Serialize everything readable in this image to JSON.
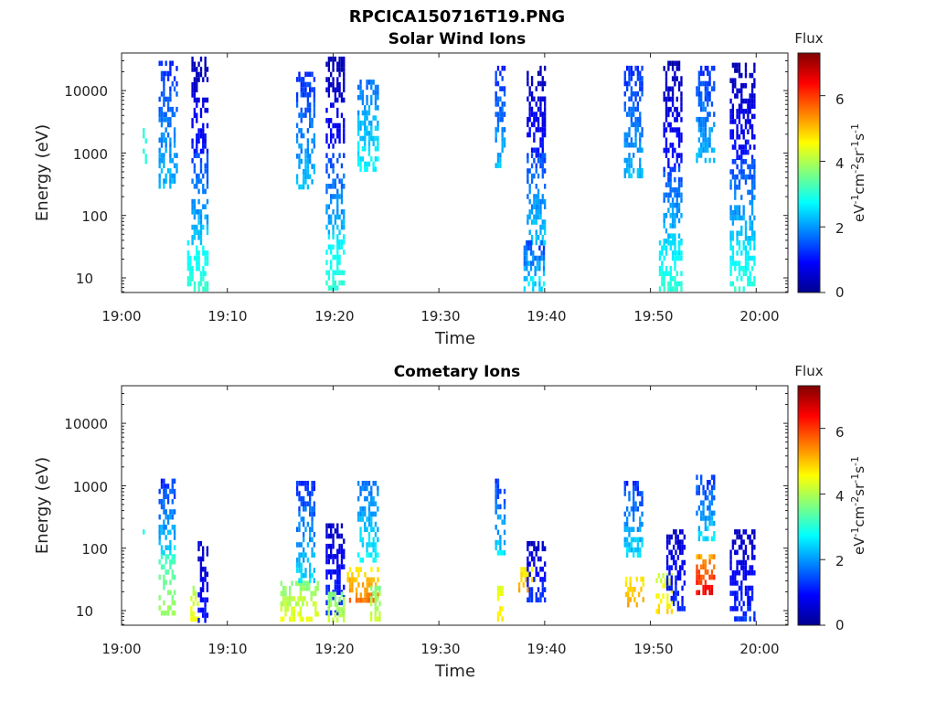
{
  "figure_title": "RPCICA150716T19.PNG",
  "chart_data": [
    {
      "type": "heatmap",
      "title": "Solar Wind Ions",
      "xlabel": "Time",
      "ylabel": "Energy (eV)",
      "colorbar_title": "Flux",
      "colorbar_label": "eV-1cm-2sr-1s-1",
      "colorbar_range": [
        0,
        7.3
      ],
      "colorbar_ticks": [
        "0",
        "2",
        "4",
        "6"
      ],
      "colormap": "jet",
      "x_tick_labels": [
        "19:00",
        "19:10",
        "19:20",
        "19:30",
        "19:40",
        "19:50",
        "20:00"
      ],
      "x_range_minutes": [
        0,
        63
      ],
      "y_scale": "log",
      "y_tick_labels": [
        "10",
        "100",
        "1000",
        "10000"
      ],
      "y_range": [
        6,
        35000
      ],
      "bursts": [
        {
          "start": 2.0,
          "end": 2.3,
          "emin": 600,
          "emax": 2500,
          "flux": [
            3,
            3
          ]
        },
        {
          "start": 3.5,
          "end": 5.2,
          "emin": 300,
          "emax": 30000,
          "flux": [
            1,
            2.5
          ]
        },
        {
          "start": 6.6,
          "end": 8.2,
          "emin": 1000,
          "emax": 35000,
          "flux": [
            0.2,
            1.2
          ]
        },
        {
          "start": 6.6,
          "end": 8.2,
          "emin": 40,
          "emax": 1000,
          "flux": [
            1.2,
            2.6
          ]
        },
        {
          "start": 6.2,
          "end": 8.2,
          "emin": 6,
          "emax": 40,
          "flux": [
            2.6,
            3.2
          ]
        },
        {
          "start": 16.5,
          "end": 18.2,
          "emin": 300,
          "emax": 20000,
          "flux": [
            1,
            2.5
          ]
        },
        {
          "start": 19.3,
          "end": 21.0,
          "emin": 1000,
          "emax": 35000,
          "flux": [
            0.2,
            1.2
          ]
        },
        {
          "start": 19.3,
          "end": 21.0,
          "emin": 50,
          "emax": 1000,
          "flux": [
            1.2,
            2.5
          ]
        },
        {
          "start": 19.3,
          "end": 21.0,
          "emin": 6,
          "emax": 50,
          "flux": [
            2.5,
            3.2
          ]
        },
        {
          "start": 22.3,
          "end": 24.3,
          "emin": 600,
          "emax": 15000,
          "flux": [
            1.5,
            3
          ]
        },
        {
          "start": 35.3,
          "end": 36.3,
          "emin": 600,
          "emax": 25000,
          "flux": [
            1,
            2.5
          ]
        },
        {
          "start": 38.3,
          "end": 40.0,
          "emin": 1000,
          "emax": 25000,
          "flux": [
            0.2,
            1.2
          ]
        },
        {
          "start": 38.3,
          "end": 40.0,
          "emin": 40,
          "emax": 1000,
          "flux": [
            1.2,
            2.6
          ]
        },
        {
          "start": 38.0,
          "end": 40.0,
          "emin": 6,
          "emax": 40,
          "flux": [
            1,
            3.2
          ]
        },
        {
          "start": 47.5,
          "end": 49.2,
          "emin": 400,
          "emax": 25000,
          "flux": [
            1,
            2.5
          ]
        },
        {
          "start": 51.2,
          "end": 53.0,
          "emin": 600,
          "emax": 30000,
          "flux": [
            0.2,
            1.2
          ]
        },
        {
          "start": 51.2,
          "end": 53.0,
          "emin": 40,
          "emax": 600,
          "flux": [
            1.2,
            2.6
          ]
        },
        {
          "start": 50.8,
          "end": 53.0,
          "emin": 6,
          "emax": 40,
          "flux": [
            2.4,
            3.2
          ]
        },
        {
          "start": 54.3,
          "end": 56.0,
          "emin": 700,
          "emax": 25000,
          "flux": [
            1,
            2.5
          ]
        },
        {
          "start": 57.5,
          "end": 59.8,
          "emin": 800,
          "emax": 28000,
          "flux": [
            0.2,
            1.2
          ]
        },
        {
          "start": 57.5,
          "end": 59.8,
          "emin": 40,
          "emax": 800,
          "flux": [
            1.2,
            2.6
          ]
        },
        {
          "start": 57.5,
          "end": 59.8,
          "emin": 6,
          "emax": 40,
          "flux": [
            2.4,
            3.2
          ]
        }
      ]
    },
    {
      "type": "heatmap",
      "title": "Cometary Ions",
      "xlabel": "Time",
      "ylabel": "Energy (eV)",
      "colorbar_title": "Flux",
      "colorbar_label": "eV-1cm-2sr-1s-1",
      "colorbar_range": [
        0,
        7.3
      ],
      "colorbar_ticks": [
        "0",
        "2",
        "4",
        "6"
      ],
      "colormap": "jet",
      "x_tick_labels": [
        "19:00",
        "19:10",
        "19:20",
        "19:30",
        "19:40",
        "19:50",
        "20:00"
      ],
      "x_range_minutes": [
        0,
        63
      ],
      "y_scale": "log",
      "y_tick_labels": [
        "10",
        "100",
        "1000",
        "10000"
      ],
      "y_range": [
        6,
        35000
      ],
      "bursts": [
        {
          "start": 2.0,
          "end": 2.5,
          "emin": 150,
          "emax": 200,
          "flux": [
            2.8,
            3.2
          ]
        },
        {
          "start": 3.5,
          "end": 5.0,
          "emin": 80,
          "emax": 1300,
          "flux": [
            1,
            2.8
          ]
        },
        {
          "start": 3.5,
          "end": 5.0,
          "emin": 10,
          "emax": 80,
          "flux": [
            3,
            4
          ]
        },
        {
          "start": 6.5,
          "end": 7.3,
          "emin": 6,
          "emax": 25,
          "flux": [
            3.8,
            4.8
          ]
        },
        {
          "start": 7.2,
          "end": 8.2,
          "emin": 6,
          "emax": 130,
          "flux": [
            0.3,
            1.3
          ]
        },
        {
          "start": 15.0,
          "end": 18.5,
          "emin": 6,
          "emax": 30,
          "flux": [
            3.5,
            4.8
          ]
        },
        {
          "start": 16.5,
          "end": 18.2,
          "emin": 30,
          "emax": 1200,
          "flux": [
            1,
            2.8
          ]
        },
        {
          "start": 19.3,
          "end": 21.0,
          "emin": 10,
          "emax": 250,
          "flux": [
            0.3,
            1.5
          ]
        },
        {
          "start": 19.5,
          "end": 21.0,
          "emin": 6,
          "emax": 20,
          "flux": [
            3.5,
            4.5
          ]
        },
        {
          "start": 21.3,
          "end": 24.2,
          "emin": 15,
          "emax": 50,
          "flux": [
            4.5,
            5.8
          ]
        },
        {
          "start": 22.3,
          "end": 24.3,
          "emin": 60,
          "emax": 1200,
          "flux": [
            1.5,
            3
          ]
        },
        {
          "start": 23.5,
          "end": 24.5,
          "emin": 6,
          "emax": 25,
          "flux": [
            3.5,
            4.5
          ]
        },
        {
          "start": 35.3,
          "end": 36.3,
          "emin": 80,
          "emax": 1300,
          "flux": [
            1,
            2.8
          ]
        },
        {
          "start": 35.5,
          "end": 36.1,
          "emin": 6,
          "emax": 25,
          "flux": [
            4.2,
            5
          ]
        },
        {
          "start": 37.5,
          "end": 38.8,
          "emin": 20,
          "emax": 50,
          "flux": [
            4.5,
            5.5
          ]
        },
        {
          "start": 38.3,
          "end": 40.0,
          "emin": 15,
          "emax": 130,
          "flux": [
            0.3,
            1.5
          ]
        },
        {
          "start": 47.5,
          "end": 49.2,
          "emin": 80,
          "emax": 1200,
          "flux": [
            1,
            2.8
          ]
        },
        {
          "start": 47.6,
          "end": 49.4,
          "emin": 12,
          "emax": 35,
          "flux": [
            4.5,
            5.5
          ]
        },
        {
          "start": 50.5,
          "end": 52.0,
          "emin": 10,
          "emax": 40,
          "flux": [
            4,
            5
          ]
        },
        {
          "start": 51.5,
          "end": 53.2,
          "emin": 10,
          "emax": 200,
          "flux": [
            0.3,
            1.5
          ]
        },
        {
          "start": 54.3,
          "end": 56.0,
          "emin": 150,
          "emax": 1500,
          "flux": [
            1,
            2.8
          ]
        },
        {
          "start": 54.3,
          "end": 56.0,
          "emin": 20,
          "emax": 80,
          "flux": [
            5,
            6.8
          ]
        },
        {
          "start": 57.5,
          "end": 59.8,
          "emin": 6,
          "emax": 200,
          "flux": [
            0.3,
            1.5
          ]
        }
      ]
    }
  ]
}
